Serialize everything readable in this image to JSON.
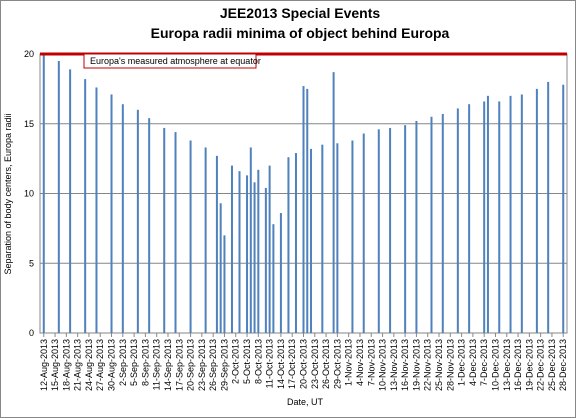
{
  "chart_data": {
    "type": "bar",
    "title": "JEE2013 Special Events",
    "subtitle": "Europa radii minima of object behind Europa",
    "y_label": "Separation of body centers, Europa radii",
    "x_label": "Date, UT",
    "color": "#4f81bd",
    "grid": true,
    "ylim": [
      0,
      20
    ],
    "yticks": [
      0,
      5,
      10,
      15,
      20
    ],
    "xlim": [
      "2013-08-11",
      "2013-12-29"
    ],
    "reference_line": {
      "value": 20,
      "label": "Europa's measured atmosphere at equator",
      "color": "#c00000"
    },
    "xticks": [
      {
        "value": "2013-08-12",
        "label": "12-Aug-2013"
      },
      {
        "value": "2013-08-15",
        "label": "15-Aug-2013"
      },
      {
        "value": "2013-08-18",
        "label": "18-Aug-2013"
      },
      {
        "value": "2013-08-21",
        "label": "21-Aug-2013"
      },
      {
        "value": "2013-08-24",
        "label": "24-Aug-2013"
      },
      {
        "value": "2013-08-27",
        "label": "27-Aug-2013"
      },
      {
        "value": "2013-08-30",
        "label": "30-Aug-2013"
      },
      {
        "value": "2013-09-02",
        "label": "2-Sep-2013"
      },
      {
        "value": "2013-09-05",
        "label": "5-Sep-2013"
      },
      {
        "value": "2013-09-08",
        "label": "8-Sep-2013"
      },
      {
        "value": "2013-09-11",
        "label": "11-Sep-2013"
      },
      {
        "value": "2013-09-14",
        "label": "14-Sep-2013"
      },
      {
        "value": "2013-09-17",
        "label": "17-Sep-2013"
      },
      {
        "value": "2013-09-20",
        "label": "20-Sep-2013"
      },
      {
        "value": "2013-09-23",
        "label": "23-Sep-2013"
      },
      {
        "value": "2013-09-26",
        "label": "26-Sep-2013"
      },
      {
        "value": "2013-09-29",
        "label": "29-Sep-2013"
      },
      {
        "value": "2013-10-02",
        "label": "2-Oct-2013"
      },
      {
        "value": "2013-10-05",
        "label": "5-Oct-2013"
      },
      {
        "value": "2013-10-08",
        "label": "8-Oct-2013"
      },
      {
        "value": "2013-10-11",
        "label": "11-Oct-2013"
      },
      {
        "value": "2013-10-14",
        "label": "14-Oct-2013"
      },
      {
        "value": "2013-10-17",
        "label": "17-Oct-2013"
      },
      {
        "value": "2013-10-20",
        "label": "20-Oct-2013"
      },
      {
        "value": "2013-10-23",
        "label": "23-Oct-2013"
      },
      {
        "value": "2013-10-26",
        "label": "26-Oct-2013"
      },
      {
        "value": "2013-10-29",
        "label": "29-Oct-2013"
      },
      {
        "value": "2013-11-01",
        "label": "1-Nov-2013"
      },
      {
        "value": "2013-11-04",
        "label": "4-Nov-2013"
      },
      {
        "value": "2013-11-07",
        "label": "7-Nov-2013"
      },
      {
        "value": "2013-11-10",
        "label": "10-Nov-2013"
      },
      {
        "value": "2013-11-13",
        "label": "13-Nov-2013"
      },
      {
        "value": "2013-11-16",
        "label": "16-Nov-2013"
      },
      {
        "value": "2013-11-19",
        "label": "19-Nov-2013"
      },
      {
        "value": "2013-11-22",
        "label": "22-Nov-2013"
      },
      {
        "value": "2013-11-25",
        "label": "25-Nov-2013"
      },
      {
        "value": "2013-11-28",
        "label": "28-Nov-2013"
      },
      {
        "value": "2013-12-01",
        "label": "1-Dec-2013"
      },
      {
        "value": "2013-12-04",
        "label": "4-Dec-2013"
      },
      {
        "value": "2013-12-07",
        "label": "7-Dec-2013"
      },
      {
        "value": "2013-12-10",
        "label": "10-Dec-2013"
      },
      {
        "value": "2013-12-13",
        "label": "13-Dec-2013"
      },
      {
        "value": "2013-12-16",
        "label": "16-Dec-2013"
      },
      {
        "value": "2013-12-19",
        "label": "19-Dec-2013"
      },
      {
        "value": "2013-12-22",
        "label": "22-Dec-2013"
      },
      {
        "value": "2013-12-25",
        "label": "25-Dec-2013"
      },
      {
        "value": "2013-12-28",
        "label": "28-Dec-2013"
      }
    ],
    "x": [
      "2013-08-12",
      "2013-08-16",
      "2013-08-19",
      "2013-08-23",
      "2013-08-26",
      "2013-08-30",
      "2013-09-02",
      "2013-09-06",
      "2013-09-09",
      "2013-09-13",
      "2013-09-16",
      "2013-09-20",
      "2013-09-24",
      "2013-09-27",
      "2013-09-28",
      "2013-09-29",
      "2013-10-01",
      "2013-10-03",
      "2013-10-05",
      "2013-10-06",
      "2013-10-07",
      "2013-10-08",
      "2013-10-10",
      "2013-10-11",
      "2013-10-12",
      "2013-10-14",
      "2013-10-16",
      "2013-10-18",
      "2013-10-20",
      "2013-10-21",
      "2013-10-22",
      "2013-10-25",
      "2013-10-28",
      "2013-10-29",
      "2013-11-02",
      "2013-11-05",
      "2013-11-09",
      "2013-11-12",
      "2013-11-16",
      "2013-11-19",
      "2013-11-23",
      "2013-11-26",
      "2013-11-30",
      "2013-12-03",
      "2013-12-07",
      "2013-12-08",
      "2013-12-11",
      "2013-12-14",
      "2013-12-17",
      "2013-12-21",
      "2013-12-24",
      "2013-12-28"
    ],
    "values": [
      20,
      19.5,
      18.9,
      18.2,
      17.6,
      17.1,
      16.4,
      16.0,
      15.4,
      14.7,
      14.4,
      13.8,
      13.3,
      12.7,
      9.3,
      7.0,
      12.0,
      11.6,
      11.3,
      13.3,
      10.8,
      11.7,
      10.4,
      12.0,
      7.8,
      8.6,
      12.6,
      12.9,
      17.7,
      17.5,
      13.2,
      13.5,
      18.7,
      13.6,
      13.8,
      14.3,
      14.6,
      14.7,
      14.9,
      15.2,
      15.5,
      15.7,
      16.1,
      16.4,
      16.6,
      17.0,
      16.6,
      17.0,
      17.1,
      17.5,
      18.0,
      17.8
    ]
  }
}
